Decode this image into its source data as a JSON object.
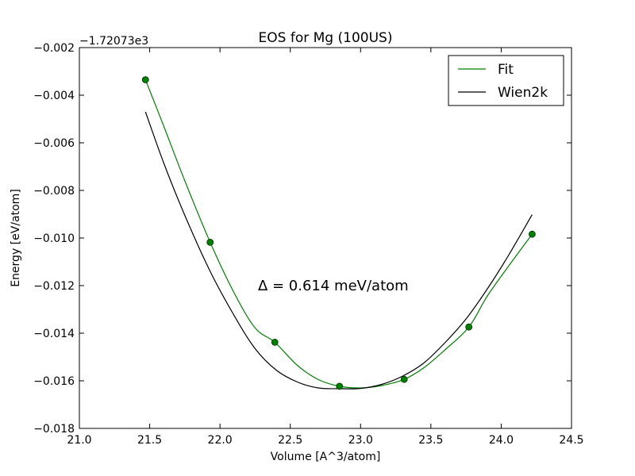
{
  "chart_data": {
    "type": "line",
    "title": "EOS for Mg (100US)",
    "xlabel": "Volume [A^3/atom]",
    "ylabel": "Energy [eV/atom]",
    "y_offset_label": "−1.72073e3",
    "xlim": [
      21.0,
      24.5
    ],
    "ylim": [
      -0.018,
      -0.002
    ],
    "x_ticks": [
      21.0,
      21.5,
      22.0,
      22.5,
      23.0,
      23.5,
      24.0,
      24.5
    ],
    "x_tick_labels": [
      "21.0",
      "21.5",
      "22.0",
      "22.5",
      "23.0",
      "23.5",
      "24.0",
      "24.5"
    ],
    "y_ticks": [
      -0.002,
      -0.004,
      -0.006,
      -0.008,
      -0.01,
      -0.012,
      -0.014,
      -0.016,
      -0.018
    ],
    "y_tick_labels": [
      "−0.002",
      "−0.004",
      "−0.006",
      "−0.008",
      "−0.010",
      "−0.012",
      "−0.014",
      "−0.016",
      "−0.018"
    ],
    "grid": false,
    "legend": {
      "position": "top-right",
      "entries": [
        "Fit",
        "Wien2k"
      ]
    },
    "annotation": {
      "text": "Δ = 0.614 meV/atom",
      "x": 22.27,
      "y": -0.012
    },
    "series": [
      {
        "name": "Fit",
        "color": "#008000",
        "kind": "line",
        "x": [
          21.47,
          21.6,
          21.75,
          21.93,
          22.1,
          22.25,
          22.39,
          22.55,
          22.7,
          22.85,
          23.0,
          23.15,
          23.31,
          23.45,
          23.6,
          23.77,
          23.9,
          24.05,
          24.22
        ],
        "y": [
          -0.00335,
          -0.0053,
          -0.0076,
          -0.01018,
          -0.0123,
          -0.01378,
          -0.01438,
          -0.01535,
          -0.01595,
          -0.01623,
          -0.0163,
          -0.0162,
          -0.01594,
          -0.01545,
          -0.0147,
          -0.01374,
          -0.01245,
          -0.0112,
          -0.00984
        ]
      },
      {
        "name": "Wien2k",
        "color": "#000000",
        "kind": "line",
        "x": [
          21.47,
          21.6,
          21.75,
          21.93,
          22.1,
          22.25,
          22.4,
          22.55,
          22.7,
          22.85,
          23.0,
          23.15,
          23.3,
          23.45,
          23.6,
          23.75,
          23.9,
          24.05,
          24.22
        ],
        "y": [
          -0.0047,
          -0.00685,
          -0.00905,
          -0.0114,
          -0.01325,
          -0.01465,
          -0.01555,
          -0.01605,
          -0.0163,
          -0.01633,
          -0.01632,
          -0.01615,
          -0.0158,
          -0.01525,
          -0.0144,
          -0.0134,
          -0.01215,
          -0.01075,
          -0.00902
        ]
      },
      {
        "name": "",
        "color": "#008000",
        "kind": "points",
        "x": [
          21.47,
          21.93,
          22.39,
          22.85,
          23.31,
          23.77,
          24.22
        ],
        "y": [
          -0.00335,
          -0.01018,
          -0.01438,
          -0.01623,
          -0.01594,
          -0.01374,
          -0.00984
        ]
      }
    ]
  }
}
